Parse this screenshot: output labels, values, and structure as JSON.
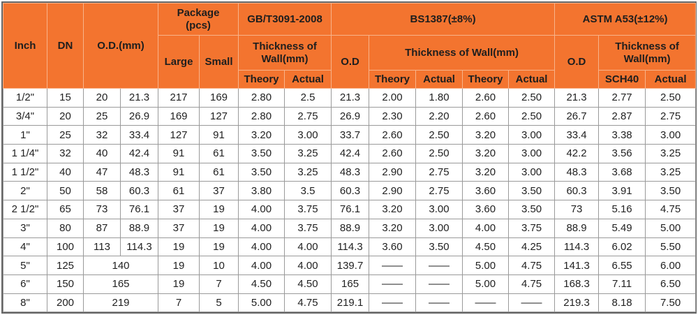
{
  "headers": {
    "inch": "Inch",
    "dn": "DN",
    "od_mm": "O.D.(mm)",
    "package": "Package\n(pcs)",
    "package_large": "Large",
    "package_small": "Small",
    "gb": "GB/T3091-2008",
    "gb_thickness": "Thickness of Wall(mm)",
    "gb_theory": "Theory",
    "gb_actual": "Actual",
    "bs": "BS1387(±8%)",
    "bs_od": "O.D",
    "bs_thickness": "Thickness of Wall(mm)",
    "bs_theory1": "Theory",
    "bs_actual1": "Actual",
    "bs_theory2": "Theory",
    "bs_actual2": "Actual",
    "astm": "ASTM A53(±12%)",
    "astm_od": "O.D",
    "astm_thickness": "Thickness of Wall(mm)",
    "astm_sch40": "SCH40",
    "astm_actual": "Actual"
  },
  "rows": [
    {
      "inch": "1/2\"",
      "dn": "15",
      "od1": "20",
      "od2": "21.3",
      "large": "217",
      "small": "169",
      "gb_theory": "2.80",
      "gb_actual": "2.5",
      "bs_od": "21.3",
      "bs_t1": "2.00",
      "bs_a1": "1.80",
      "bs_t2": "2.60",
      "bs_a2": "2.50",
      "astm_od": "21.3",
      "astm_sch40": "2.77",
      "astm_actual": "2.50"
    },
    {
      "inch": "3/4\"",
      "dn": "20",
      "od1": "25",
      "od2": "26.9",
      "large": "169",
      "small": "127",
      "gb_theory": "2.80",
      "gb_actual": "2.75",
      "bs_od": "26.9",
      "bs_t1": "2.30",
      "bs_a1": "2.20",
      "bs_t2": "2.60",
      "bs_a2": "2.50",
      "astm_od": "26.7",
      "astm_sch40": "2.87",
      "astm_actual": "2.75"
    },
    {
      "inch": "1\"",
      "dn": "25",
      "od1": "32",
      "od2": "33.4",
      "large": "127",
      "small": "91",
      "gb_theory": "3.20",
      "gb_actual": "3.00",
      "bs_od": "33.7",
      "bs_t1": "2.60",
      "bs_a1": "2.50",
      "bs_t2": "3.20",
      "bs_a2": "3.00",
      "astm_od": "33.4",
      "astm_sch40": "3.38",
      "astm_actual": "3.00"
    },
    {
      "inch": "1 1/4\"",
      "dn": "32",
      "od1": "40",
      "od2": "42.4",
      "large": "91",
      "small": "61",
      "gb_theory": "3.50",
      "gb_actual": "3.25",
      "bs_od": "42.4",
      "bs_t1": "2.60",
      "bs_a1": "2.50",
      "bs_t2": "3.20",
      "bs_a2": "3.00",
      "astm_od": "42.2",
      "astm_sch40": "3.56",
      "astm_actual": "3.25"
    },
    {
      "inch": "1 1/2\"",
      "dn": "40",
      "od1": "47",
      "od2": "48.3",
      "large": "91",
      "small": "61",
      "gb_theory": "3.50",
      "gb_actual": "3.25",
      "bs_od": "48.3",
      "bs_t1": "2.90",
      "bs_a1": "2.75",
      "bs_t2": "3.20",
      "bs_a2": "3.00",
      "astm_od": "48.3",
      "astm_sch40": "3.68",
      "astm_actual": "3.25"
    },
    {
      "inch": "2\"",
      "dn": "50",
      "od1": "58",
      "od2": "60.3",
      "large": "61",
      "small": "37",
      "gb_theory": "3.80",
      "gb_actual": "3.5",
      "bs_od": "60.3",
      "bs_t1": "2.90",
      "bs_a1": "2.75",
      "bs_t2": "3.60",
      "bs_a2": "3.50",
      "astm_od": "60.3",
      "astm_sch40": "3.91",
      "astm_actual": "3.50"
    },
    {
      "inch": "2 1/2\"",
      "dn": "65",
      "od1": "73",
      "od2": "76.1",
      "large": "37",
      "small": "19",
      "gb_theory": "4.00",
      "gb_actual": "3.75",
      "bs_od": "76.1",
      "bs_t1": "3.20",
      "bs_a1": "3.00",
      "bs_t2": "3.60",
      "bs_a2": "3.50",
      "astm_od": "73",
      "astm_sch40": "5.16",
      "astm_actual": "4.75"
    },
    {
      "inch": "3\"",
      "dn": "80",
      "od1": "87",
      "od2": "88.9",
      "large": "37",
      "small": "19",
      "gb_theory": "4.00",
      "gb_actual": "3.75",
      "bs_od": "88.9",
      "bs_t1": "3.20",
      "bs_a1": "3.00",
      "bs_t2": "4.00",
      "bs_a2": "3.75",
      "astm_od": "88.9",
      "astm_sch40": "5.49",
      "astm_actual": "5.00"
    },
    {
      "inch": "4\"",
      "dn": "100",
      "od1": "113",
      "od2": "114.3",
      "large": "19",
      "small": "19",
      "gb_theory": "4.00",
      "gb_actual": "4.00",
      "bs_od": "114.3",
      "bs_t1": "3.60",
      "bs_a1": "3.50",
      "bs_t2": "4.50",
      "bs_a2": "4.25",
      "astm_od": "114.3",
      "astm_sch40": "6.02",
      "astm_actual": "5.50"
    },
    {
      "inch": "5\"",
      "dn": "125",
      "od": "140",
      "large": "19",
      "small": "10",
      "gb_theory": "4.00",
      "gb_actual": "4.00",
      "bs_od": "139.7",
      "bs_t1": "——",
      "bs_a1": "——",
      "bs_t2": "5.00",
      "bs_a2": "4.75",
      "astm_od": "141.3",
      "astm_sch40": "6.55",
      "astm_actual": "6.00"
    },
    {
      "inch": "6\"",
      "dn": "150",
      "od": "165",
      "large": "19",
      "small": "7",
      "gb_theory": "4.50",
      "gb_actual": "4.50",
      "bs_od": "165",
      "bs_t1": "——",
      "bs_a1": "——",
      "bs_t2": "5.00",
      "bs_a2": "4.75",
      "astm_od": "168.3",
      "astm_sch40": "7.11",
      "astm_actual": "6.50"
    },
    {
      "inch": "8\"",
      "dn": "200",
      "od": "219",
      "large": "7",
      "small": "5",
      "gb_theory": "5.00",
      "gb_actual": "4.75",
      "bs_od": "219.1",
      "bs_t1": "——",
      "bs_a1": "——",
      "bs_t2": "——",
      "bs_a2": "——",
      "astm_od": "219.3",
      "astm_sch40": "8.18",
      "astm_actual": "7.50"
    }
  ]
}
